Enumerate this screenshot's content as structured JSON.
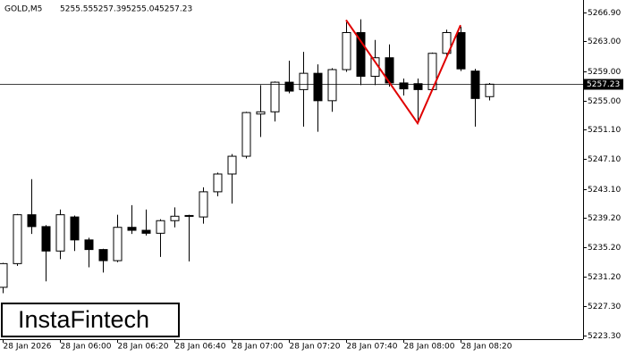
{
  "chart_data": {
    "type": "candlestick",
    "symbol": "GOLD,M5",
    "watermark": "InstaFintech",
    "categories": [
      "28 Jan 2026",
      null,
      null,
      null,
      "28 Jan 06:00",
      null,
      null,
      null,
      "28 Jan 06:20",
      null,
      null,
      null,
      "28 Jan 06:40",
      null,
      null,
      null,
      "28 Jan 07:00",
      null,
      null,
      null,
      "28 Jan 07:20",
      null,
      null,
      null,
      "28 Jan 07:40",
      null,
      null,
      null,
      "28 Jan 08:00",
      null,
      null,
      null,
      "28 Jan 08:20",
      null,
      null
    ],
    "open": [
      5229.8,
      5233.0,
      5239.6,
      5238.0,
      5234.7,
      5239.3,
      5236.2,
      5234.9,
      5233.4,
      5237.9,
      5237.5,
      5237.1,
      5238.8,
      5239.4,
      5239.3,
      5242.7,
      5245.1,
      5247.5,
      5253.2,
      5253.5,
      5257.5,
      5256.5,
      5258.7,
      5255.0,
      5259.2,
      5264.2,
      5258.3,
      5260.8,
      5257.4,
      5257.3,
      5256.5,
      5261.4,
      5264.2,
      5259.0,
      5255.55
    ],
    "high": [
      5233.1,
      5239.7,
      5244.4,
      5238.2,
      5240.3,
      5239.5,
      5236.5,
      5235.0,
      5239.6,
      5240.9,
      5240.3,
      5239.0,
      5240.6,
      5239.6,
      5243.3,
      5245.3,
      5247.8,
      5253.5,
      5257.1,
      5257.6,
      5260.4,
      5261.6,
      5259.9,
      5259.4,
      5265.6,
      5266.0,
      5263.2,
      5262.6,
      5258.0,
      5258.0,
      5261.5,
      5264.6,
      5265.0,
      5259.3,
      5257.39
    ],
    "low": [
      5229.0,
      5232.7,
      5237.0,
      5230.6,
      5233.6,
      5234.7,
      5232.5,
      5231.8,
      5233.2,
      5237.0,
      5236.8,
      5233.9,
      5237.9,
      5233.3,
      5238.4,
      5242.1,
      5241.1,
      5247.2,
      5250.1,
      5252.2,
      5256.0,
      5251.5,
      5250.8,
      5253.5,
      5258.9,
      5257.1,
      5257.1,
      5256.9,
      5255.7,
      5252.3,
      5256.4,
      5261.0,
      5259.0,
      5251.5,
      5255.04
    ],
    "close": [
      5233.0,
      5239.6,
      5238.0,
      5234.7,
      5239.6,
      5236.2,
      5234.9,
      5233.4,
      5237.9,
      5237.5,
      5237.1,
      5238.8,
      5239.4,
      5239.5,
      5242.7,
      5245.1,
      5247.5,
      5253.4,
      5253.5,
      5257.5,
      5256.3,
      5258.7,
      5255.0,
      5259.2,
      5264.2,
      5258.3,
      5260.8,
      5257.4,
      5256.6,
      5256.5,
      5261.4,
      5264.2,
      5259.3,
      5255.3,
      5257.23
    ],
    "ylim": [
      5222.8,
      5268.6
    ],
    "yticks": [
      {
        "value": 5266.9,
        "label": "5266.90"
      },
      {
        "value": 5263.0,
        "label": "5263.00"
      },
      {
        "value": 5259.0,
        "label": "5259.00"
      },
      {
        "value": 5255.0,
        "label": "5255.00"
      },
      {
        "value": 5251.1,
        "label": "5251.10"
      },
      {
        "value": 5247.1,
        "label": "5247.10"
      },
      {
        "value": 5243.1,
        "label": "5243.10"
      },
      {
        "value": 5239.2,
        "label": "5239.20"
      },
      {
        "value": 5235.2,
        "label": "5235.20"
      },
      {
        "value": 5231.2,
        "label": "5231.20"
      },
      {
        "value": 5227.3,
        "label": "5227.30"
      },
      {
        "value": 5223.3,
        "label": "5223.30"
      }
    ],
    "pattern": {
      "color": "#e00000",
      "categories": [
        24,
        29,
        32
      ],
      "values": [
        5265.9,
        5251.96,
        5265.2
      ]
    }
  }
}
